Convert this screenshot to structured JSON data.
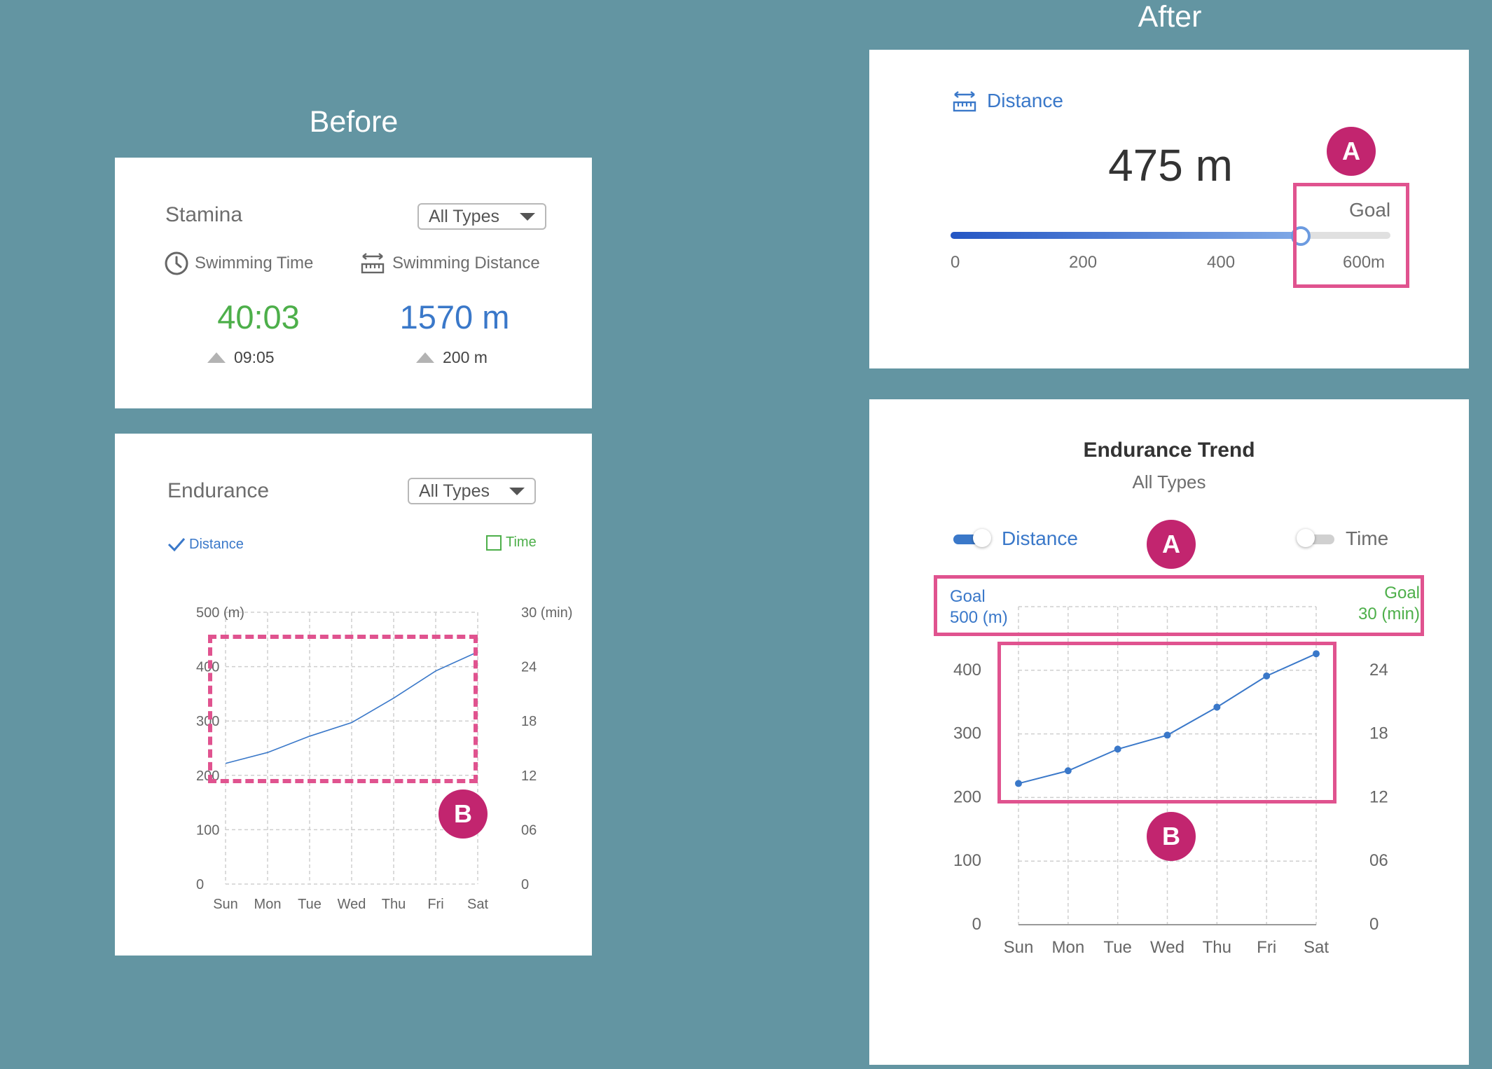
{
  "headings": {
    "before": "Before",
    "after": "After"
  },
  "stamina_card": {
    "title": "Stamina",
    "dropdown": "All Types",
    "time": {
      "label": "Swimming Time",
      "value": "40:03",
      "delta": "09:05"
    },
    "distance": {
      "label": "Swimming Distance",
      "value": "1570 m",
      "delta": "200 m"
    }
  },
  "endurance_card": {
    "title": "Endurance",
    "dropdown": "All Types",
    "legend": {
      "distance": "Distance",
      "time": "Time"
    },
    "left_axis_top": "500 (m)",
    "right_axis_top": "30 (min)",
    "badge": "B"
  },
  "distance_card": {
    "label": "Distance",
    "value": "475 m",
    "goal_label": "Goal",
    "progress": 0.79,
    "scale_labels": [
      "0",
      "200",
      "400",
      "600m"
    ],
    "badge": "A"
  },
  "trend_card": {
    "title": "Endurance Trend",
    "subtitle": "All Types",
    "toggle_distance": "Distance",
    "toggle_time": "Time",
    "goal_left_label": "Goal",
    "goal_left_value": "500 (m)",
    "goal_right_label": "Goal",
    "goal_right_value": "30 (min)",
    "badge_a": "A",
    "badge_b": "B"
  },
  "colors": {
    "background": "#6395A2",
    "accent_blue": "#3A78C9",
    "accent_green": "#4DAF4A",
    "highlight_pink": "#E0538F",
    "badge": "#C2256F"
  },
  "chart_data": [
    {
      "type": "line",
      "categories": [
        "Sun",
        "Mon",
        "Tue",
        "Wed",
        "Thu",
        "Fri",
        "Sat"
      ],
      "series": [
        {
          "name": "Distance",
          "values": [
            222,
            242,
            272,
            297,
            342,
            392,
            427
          ]
        }
      ],
      "left_ticks": [
        "500 (m)",
        "400",
        "300",
        "200",
        "100",
        "0"
      ],
      "right_ticks": [
        "30 (min)",
        "24",
        "18",
        "12",
        "06",
        "0"
      ],
      "ylim": [
        0,
        500
      ],
      "grid": true
    },
    {
      "type": "line",
      "categories": [
        "Sun",
        "Mon",
        "Tue",
        "Wed",
        "Thu",
        "Fri",
        "Sat"
      ],
      "series": [
        {
          "name": "Distance",
          "values": [
            222,
            242,
            276,
            298,
            342,
            391,
            426
          ]
        }
      ],
      "left_ticks": [
        "400",
        "300",
        "200",
        "100",
        "0"
      ],
      "right_ticks": [
        "24",
        "18",
        "12",
        "06",
        "0"
      ],
      "ylim": [
        0,
        500
      ],
      "grid": true
    }
  ]
}
